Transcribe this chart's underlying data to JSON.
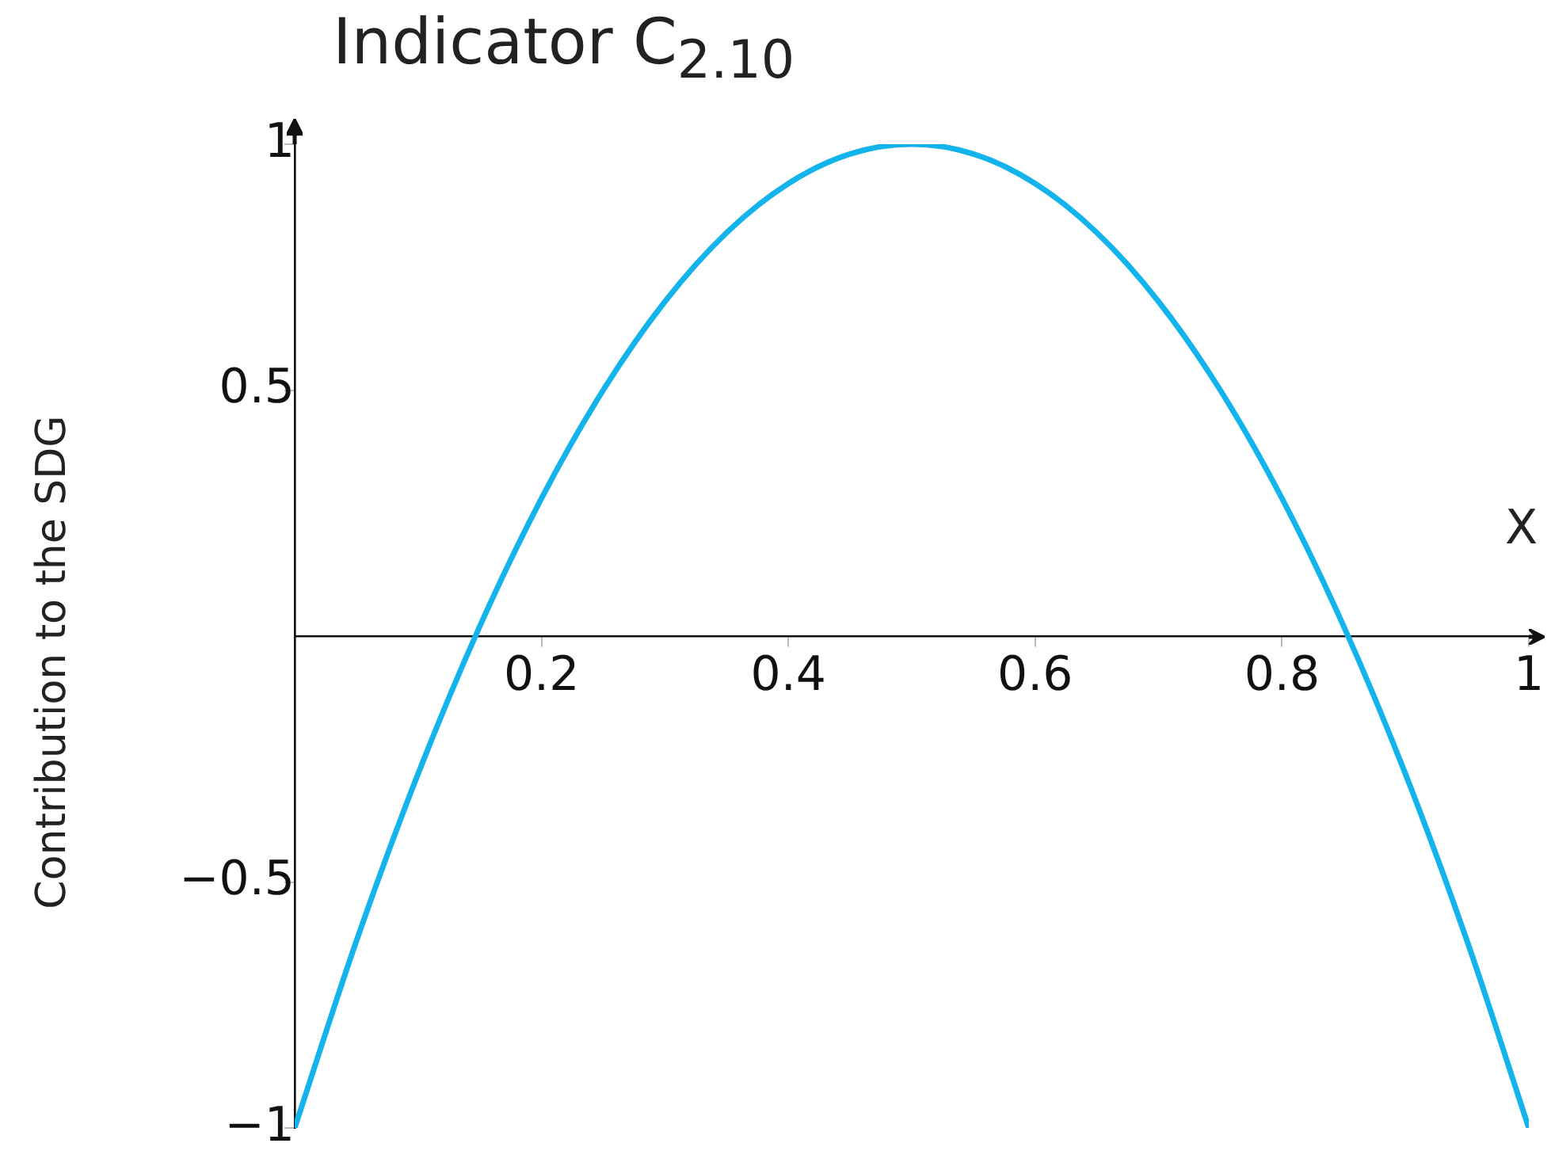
{
  "chart_data": {
    "type": "line",
    "title": "Indicator C$_{2.10}$",
    "xlabel": "X",
    "ylabel": "Contribution to the SDG",
    "x": [
      0,
      0.05,
      0.1,
      0.15,
      0.2,
      0.25,
      0.3,
      0.35,
      0.4,
      0.45,
      0.5,
      0.55,
      0.6,
      0.65,
      0.7,
      0.75,
      0.8,
      0.85,
      0.9,
      0.95,
      1
    ],
    "series": [
      {
        "color": "#13b3ec",
        "values": [
          -1,
          -0.62,
          -0.28,
          0.02,
          0.28,
          0.5,
          0.68,
          0.82,
          0.92,
          0.98,
          1,
          0.98,
          0.92,
          0.82,
          0.68,
          0.5,
          0.28,
          0.02,
          -0.28,
          -0.62,
          -1
        ]
      }
    ],
    "xlim": [
      0,
      1
    ],
    "ylim": [
      -1,
      1
    ],
    "xticks": [
      0.2,
      0.4,
      0.6,
      0.8,
      1
    ],
    "yticks": [
      -1,
      -0.5,
      0.5,
      1
    ],
    "marker": "none",
    "legend": false
  }
}
